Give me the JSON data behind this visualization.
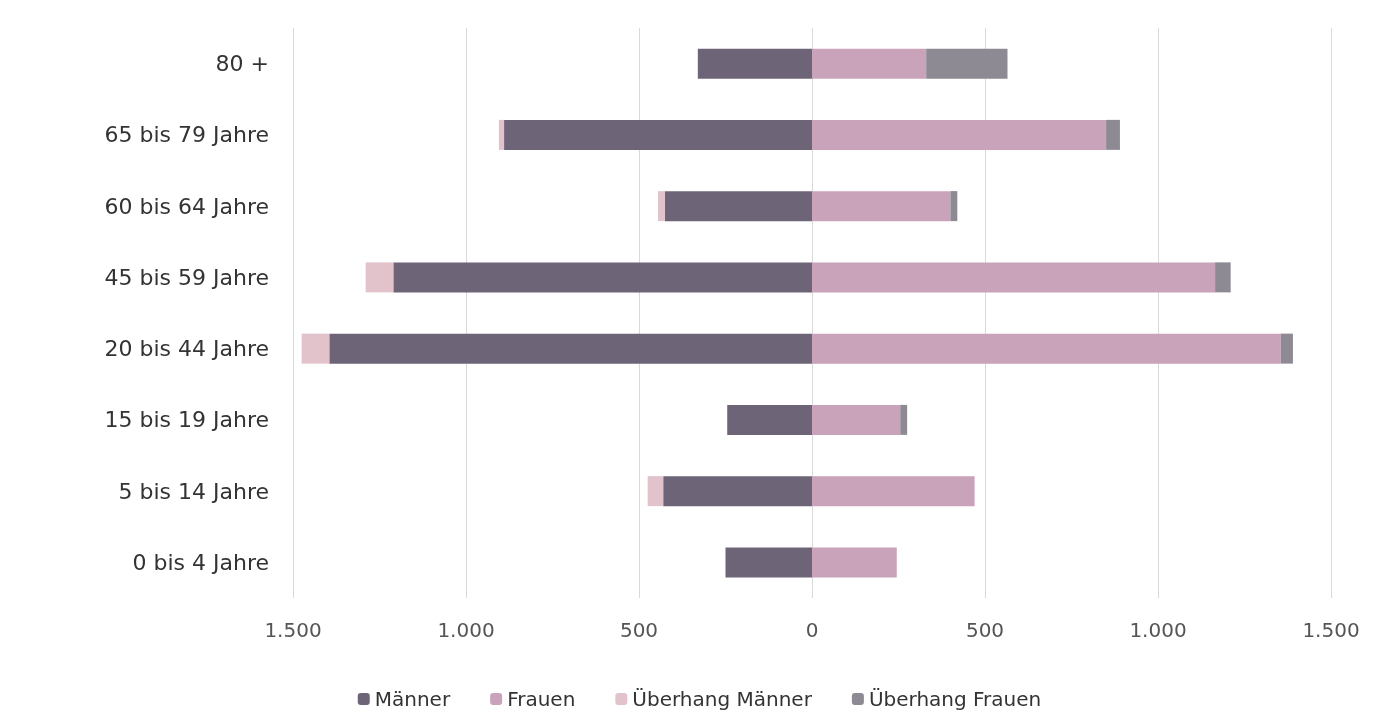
{
  "chart_data": {
    "type": "bar",
    "orientation": "horizontal",
    "stacked": true,
    "categories": [
      "80 +",
      "65 bis 79 Jahre",
      "60 bis 64 Jahre",
      "45 bis 59 Jahre",
      "20 bis 44 Jahre",
      "15 bis 19 Jahre",
      "5 bis 14 Jahre",
      "0 bis 4 Jahre"
    ],
    "series": [
      {
        "name": "Männer",
        "color": "#6e6478",
        "values": [
          -330,
          -890,
          -425,
          -1210,
          -1395,
          -245,
          -430,
          -250
        ]
      },
      {
        "name": "Frauen",
        "color": "#c9a3ba",
        "values": [
          330,
          850,
          400,
          1165,
          1355,
          255,
          470,
          245
        ]
      },
      {
        "name": "Überhang Männer",
        "color": "#e2c3cb",
        "values": [
          0,
          -15,
          -20,
          -80,
          -80,
          0,
          -45,
          0
        ]
      },
      {
        "name": "Überhang Frauen",
        "color": "#8e8a94",
        "values": [
          235,
          40,
          20,
          45,
          35,
          20,
          0,
          0
        ]
      }
    ],
    "xlim": [
      -1500,
      1500
    ],
    "xticks": [
      {
        "value": -1500,
        "label": "1.500"
      },
      {
        "value": -1000,
        "label": "1.000"
      },
      {
        "value": -500,
        "label": "500"
      },
      0,
      500,
      {
        "value": 1000,
        "label": "1.000"
      },
      {
        "value": 1500,
        "label": "1.500"
      }
    ],
    "grid": "x",
    "legend": "bottom"
  }
}
